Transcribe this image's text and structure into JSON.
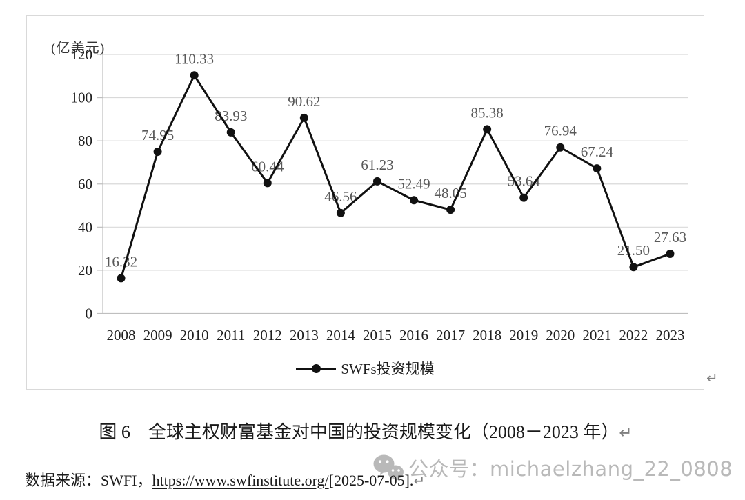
{
  "chart_data": {
    "type": "line",
    "title": "",
    "unit_label": "(亿美元)",
    "categories": [
      "2008",
      "2009",
      "2010",
      "2011",
      "2012",
      "2013",
      "2014",
      "2015",
      "2016",
      "2017",
      "2018",
      "2019",
      "2020",
      "2021",
      "2022",
      "2023"
    ],
    "series": [
      {
        "name": "SWFs投资规模",
        "values": [
          16.32,
          74.95,
          110.33,
          83.93,
          60.44,
          90.62,
          46.56,
          61.23,
          52.49,
          48.05,
          85.38,
          53.64,
          76.94,
          67.24,
          21.5,
          27.63
        ],
        "labels": [
          "16.32",
          "74.95",
          "110.33",
          "83.93",
          "60.44",
          "90.62",
          "46.56",
          "61.23",
          "52.49",
          "48.05",
          "85.38",
          "53.64",
          "76.94",
          "67.24",
          "21.50",
          "27.63"
        ]
      }
    ],
    "xlabel": "",
    "ylabel": "(亿美元)",
    "ylim": [
      0,
      120
    ],
    "yticks": [
      0,
      20,
      40,
      60,
      80,
      100,
      120
    ],
    "grid": "horizontal-only",
    "legend_position": "bottom-center",
    "colors": {
      "line": "#111111",
      "grid": "#d9d9d9",
      "axis": "#bfbfbf",
      "tick_text": "#1f1f1f",
      "data_label": "#595959"
    }
  },
  "chart_return_mark": "↵",
  "caption": {
    "text": "图 6　全球主权财富基金对中国的投资规模变化（2008－2023 年）",
    "return_mark": "↵"
  },
  "source": {
    "prefix": "数据来源：SWFI，",
    "url": "https://www.swfinstitute.org/",
    "suffix": "[2025-07-05].",
    "return_mark": "↵"
  },
  "watermark": {
    "icon": "wechat-icon",
    "label": "公众号：",
    "account": "michaelzhang_22_0808"
  }
}
